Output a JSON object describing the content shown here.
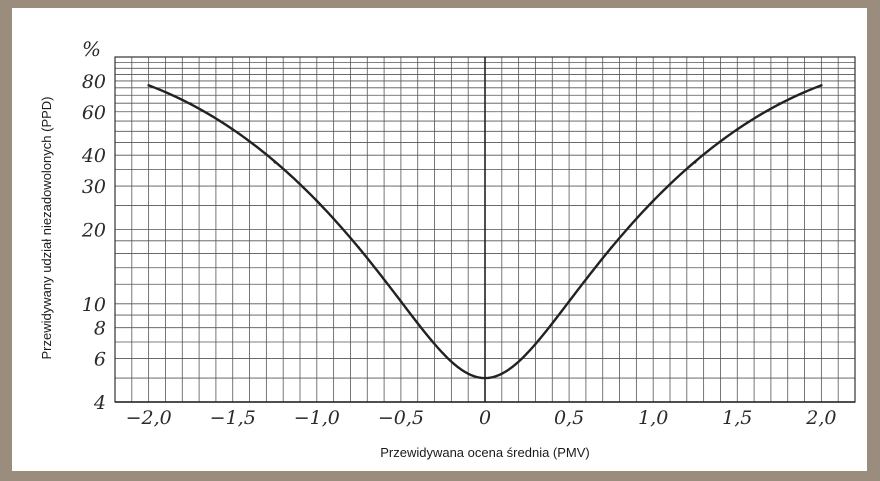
{
  "chart_data": {
    "type": "line",
    "xlabel": "Przewidywana ocena średnia (PMV)",
    "ylabel": "Przewidywany udział niezadowolonych (PPD)",
    "y_unit": "%",
    "y_scale": "log",
    "xlim": [
      -2.2,
      2.2
    ],
    "ylim": [
      4,
      100
    ],
    "x_ticks": [
      -2.0,
      -1.5,
      -1.0,
      -0.5,
      0,
      0.5,
      1.0,
      1.5,
      2.0
    ],
    "x_tick_labels": [
      "−2,0",
      "−1,5",
      "−1,0",
      "−0,5",
      "0",
      "0,5",
      "1,0",
      "1,5",
      "2,0"
    ],
    "y_ticks": [
      4,
      6,
      8,
      10,
      20,
      30,
      40,
      60,
      80
    ],
    "y_tick_labels": [
      "4",
      "6",
      "8",
      "10",
      "20",
      "30",
      "40",
      "60",
      "80"
    ],
    "grid": true,
    "series": [
      {
        "x": [
          -2.0,
          -1.75,
          -1.5,
          -1.25,
          -1.0,
          -0.75,
          -0.5,
          -0.25,
          0,
          0.25,
          0.5,
          0.75,
          1.0,
          1.25,
          1.5,
          1.75,
          2.0
        ],
        "y": [
          76.8,
          64.8,
          50.6,
          37.4,
          26.1,
          16.9,
          10.2,
          6.3,
          5.0,
          6.3,
          10.2,
          16.9,
          26.1,
          37.4,
          50.6,
          64.8,
          76.8
        ]
      }
    ]
  }
}
